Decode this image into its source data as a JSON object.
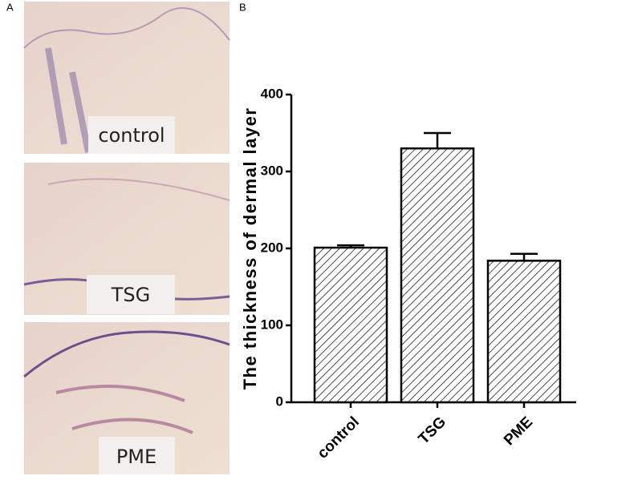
{
  "panel_a": {
    "label": "A",
    "images": [
      {
        "label": "control"
      },
      {
        "label": "TSG"
      },
      {
        "label": "PME"
      }
    ]
  },
  "chart_data": {
    "type": "bar",
    "panel_label": "B",
    "ylabel": "The thickness of dermal layer",
    "categories": [
      "control",
      "TSG",
      "PME"
    ],
    "values": [
      201,
      330,
      184
    ],
    "errors": [
      3,
      20,
      9
    ],
    "ylim": [
      0,
      400
    ],
    "yticks": [
      0,
      100,
      200,
      300,
      400
    ],
    "grid": false
  }
}
